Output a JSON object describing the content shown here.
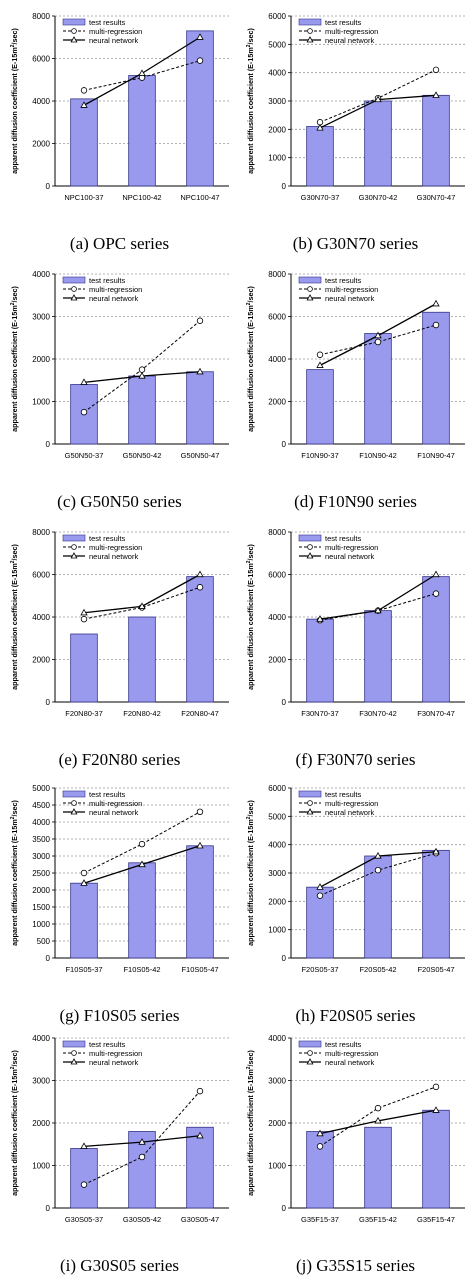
{
  "legend": {
    "test_results": "test results",
    "multi_regression": "multi-regression",
    "neural_network": "neural network"
  },
  "ylabel_prefix": "apparent diffusion coefficient (E-15m",
  "ylabel_suffix": "/sec)",
  "colors": {
    "bar_fill": "#9999ee",
    "bar_stroke": "#33338a",
    "grid": "#999999",
    "line": "#000000"
  },
  "chart_data": [
    {
      "type": "bar",
      "caption": "(a) OPC series",
      "categories": [
        "NPC100-37",
        "NPC100-42",
        "NPC100-47"
      ],
      "ylim": [
        0,
        8000
      ],
      "yticks": [
        "0",
        "2000",
        "4000",
        "6000",
        "8000"
      ],
      "series": [
        {
          "name": "test results",
          "values": [
            4100,
            5200,
            7300
          ]
        },
        {
          "name": "multi-regression",
          "values": [
            4500,
            5100,
            5900
          ]
        },
        {
          "name": "neural network",
          "values": [
            3800,
            5300,
            7000
          ]
        }
      ]
    },
    {
      "type": "bar",
      "caption": "(b) G30N70 series",
      "categories": [
        "G30N70-37",
        "G30N70-42",
        "G30N70-47"
      ],
      "ylim": [
        0,
        6000
      ],
      "yticks": [
        "0",
        "1000",
        "2000",
        "3000",
        "4000",
        "5000",
        "6000"
      ],
      "series": [
        {
          "name": "test results",
          "values": [
            2100,
            3000,
            3200
          ]
        },
        {
          "name": "multi-regression",
          "values": [
            2250,
            3100,
            4100
          ]
        },
        {
          "name": "neural network",
          "values": [
            2050,
            3050,
            3200
          ]
        }
      ]
    },
    {
      "type": "bar",
      "caption": "(c) G50N50 series",
      "categories": [
        "G50N50-37",
        "G50N50-42",
        "G50N50-47"
      ],
      "ylim": [
        0,
        4000
      ],
      "yticks": [
        "0",
        "1000",
        "2000",
        "3000",
        "4000"
      ],
      "series": [
        {
          "name": "test results",
          "values": [
            1400,
            1600,
            1700
          ]
        },
        {
          "name": "multi-regression",
          "values": [
            750,
            1750,
            2900
          ]
        },
        {
          "name": "neural network",
          "values": [
            1450,
            1600,
            1700
          ]
        }
      ]
    },
    {
      "type": "bar",
      "caption": "(d) F10N90 series",
      "categories": [
        "F10N90-37",
        "F10N90-42",
        "F10N90-47"
      ],
      "ylim": [
        0,
        8000
      ],
      "yticks": [
        "0",
        "2000",
        "4000",
        "6000",
        "8000"
      ],
      "series": [
        {
          "name": "test results",
          "values": [
            3500,
            5200,
            6200
          ]
        },
        {
          "name": "multi-regression",
          "values": [
            4200,
            4800,
            5600
          ]
        },
        {
          "name": "neural network",
          "values": [
            3700,
            5100,
            6600
          ]
        }
      ]
    },
    {
      "type": "bar",
      "caption": "(e) F20N80 series",
      "categories": [
        "F20N80-37",
        "F20N80-42",
        "F20N80-47"
      ],
      "ylim": [
        0,
        8000
      ],
      "yticks": [
        "0",
        "2000",
        "4000",
        "6000",
        "8000"
      ],
      "series": [
        {
          "name": "test results",
          "values": [
            3200,
            4000,
            5900
          ]
        },
        {
          "name": "multi-regression",
          "values": [
            3900,
            4450,
            5400
          ]
        },
        {
          "name": "neural network",
          "values": [
            4200,
            4500,
            6000
          ]
        }
      ]
    },
    {
      "type": "bar",
      "caption": "(f) F30N70 series",
      "categories": [
        "F30N70-37",
        "F30N70-42",
        "F30N70-47"
      ],
      "ylim": [
        0,
        8000
      ],
      "yticks": [
        "0",
        "2000",
        "4000",
        "6000",
        "8000"
      ],
      "series": [
        {
          "name": "test results",
          "values": [
            3900,
            4300,
            5900
          ]
        },
        {
          "name": "multi-regression",
          "values": [
            3850,
            4300,
            5100
          ]
        },
        {
          "name": "neural network",
          "values": [
            3900,
            4300,
            6000
          ]
        }
      ]
    },
    {
      "type": "bar",
      "caption": "(g) F10S05 series",
      "categories": [
        "F10S05-37",
        "F10S05-42",
        "F10S05-47"
      ],
      "ylim": [
        0,
        5000
      ],
      "yticks": [
        "0",
        "500",
        "1000",
        "1500",
        "2000",
        "2500",
        "3000",
        "3500",
        "4000",
        "4500",
        "5000"
      ],
      "series": [
        {
          "name": "test results",
          "values": [
            2200,
            2800,
            3300
          ]
        },
        {
          "name": "multi-regression",
          "values": [
            2500,
            3350,
            4300
          ]
        },
        {
          "name": "neural network",
          "values": [
            2200,
            2750,
            3300
          ]
        }
      ]
    },
    {
      "type": "bar",
      "caption": "(h) F20S05 series",
      "categories": [
        "F20S05-37",
        "F20S05-42",
        "F20S05-47"
      ],
      "ylim": [
        0,
        6000
      ],
      "yticks": [
        "0",
        "1000",
        "2000",
        "3000",
        "4000",
        "5000",
        "6000"
      ],
      "series": [
        {
          "name": "test results",
          "values": [
            2500,
            3600,
            3800
          ]
        },
        {
          "name": "multi-regression",
          "values": [
            2200,
            3100,
            3700
          ]
        },
        {
          "name": "neural network",
          "values": [
            2500,
            3600,
            3750
          ]
        }
      ]
    },
    {
      "type": "bar",
      "caption": "(i) G30S05 series",
      "categories": [
        "G30S05-37",
        "G30S05-42",
        "G30S05-47"
      ],
      "ylim": [
        0,
        4000
      ],
      "yticks": [
        "0",
        "1000",
        "2000",
        "3000",
        "4000"
      ],
      "series": [
        {
          "name": "test results",
          "values": [
            1400,
            1800,
            1900
          ]
        },
        {
          "name": "multi-regression",
          "values": [
            550,
            1200,
            2750
          ]
        },
        {
          "name": "neural network",
          "values": [
            1450,
            1550,
            1700
          ]
        }
      ]
    },
    {
      "type": "bar",
      "caption": "(j) G35S15 series",
      "categories": [
        "G35F15-37",
        "G35F15-42",
        "G35F15-47"
      ],
      "ylim": [
        0,
        4000
      ],
      "yticks": [
        "0",
        "1000",
        "2000",
        "3000",
        "4000"
      ],
      "series": [
        {
          "name": "test results",
          "values": [
            1800,
            1900,
            2300
          ]
        },
        {
          "name": "multi-regression",
          "values": [
            1450,
            2350,
            2850
          ]
        },
        {
          "name": "neural network",
          "values": [
            1750,
            2050,
            2300
          ]
        }
      ]
    }
  ]
}
